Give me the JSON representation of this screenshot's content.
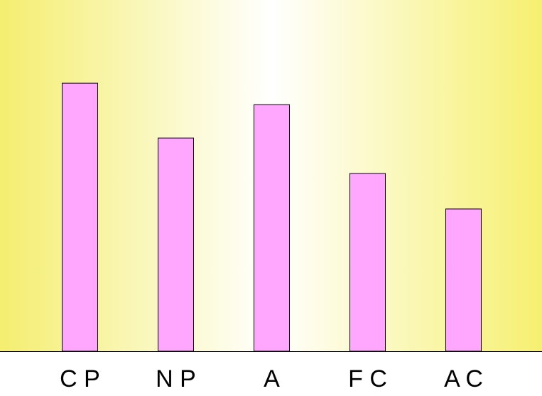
{
  "chart_data": {
    "type": "bar",
    "categories": [
      "C P",
      "N P",
      "A",
      "F C",
      "A C"
    ],
    "values": [
      76.3,
      60.7,
      70.2,
      50.6,
      40.5
    ],
    "color": "#ffa6ff",
    "ylim": [
      0,
      100
    ]
  }
}
